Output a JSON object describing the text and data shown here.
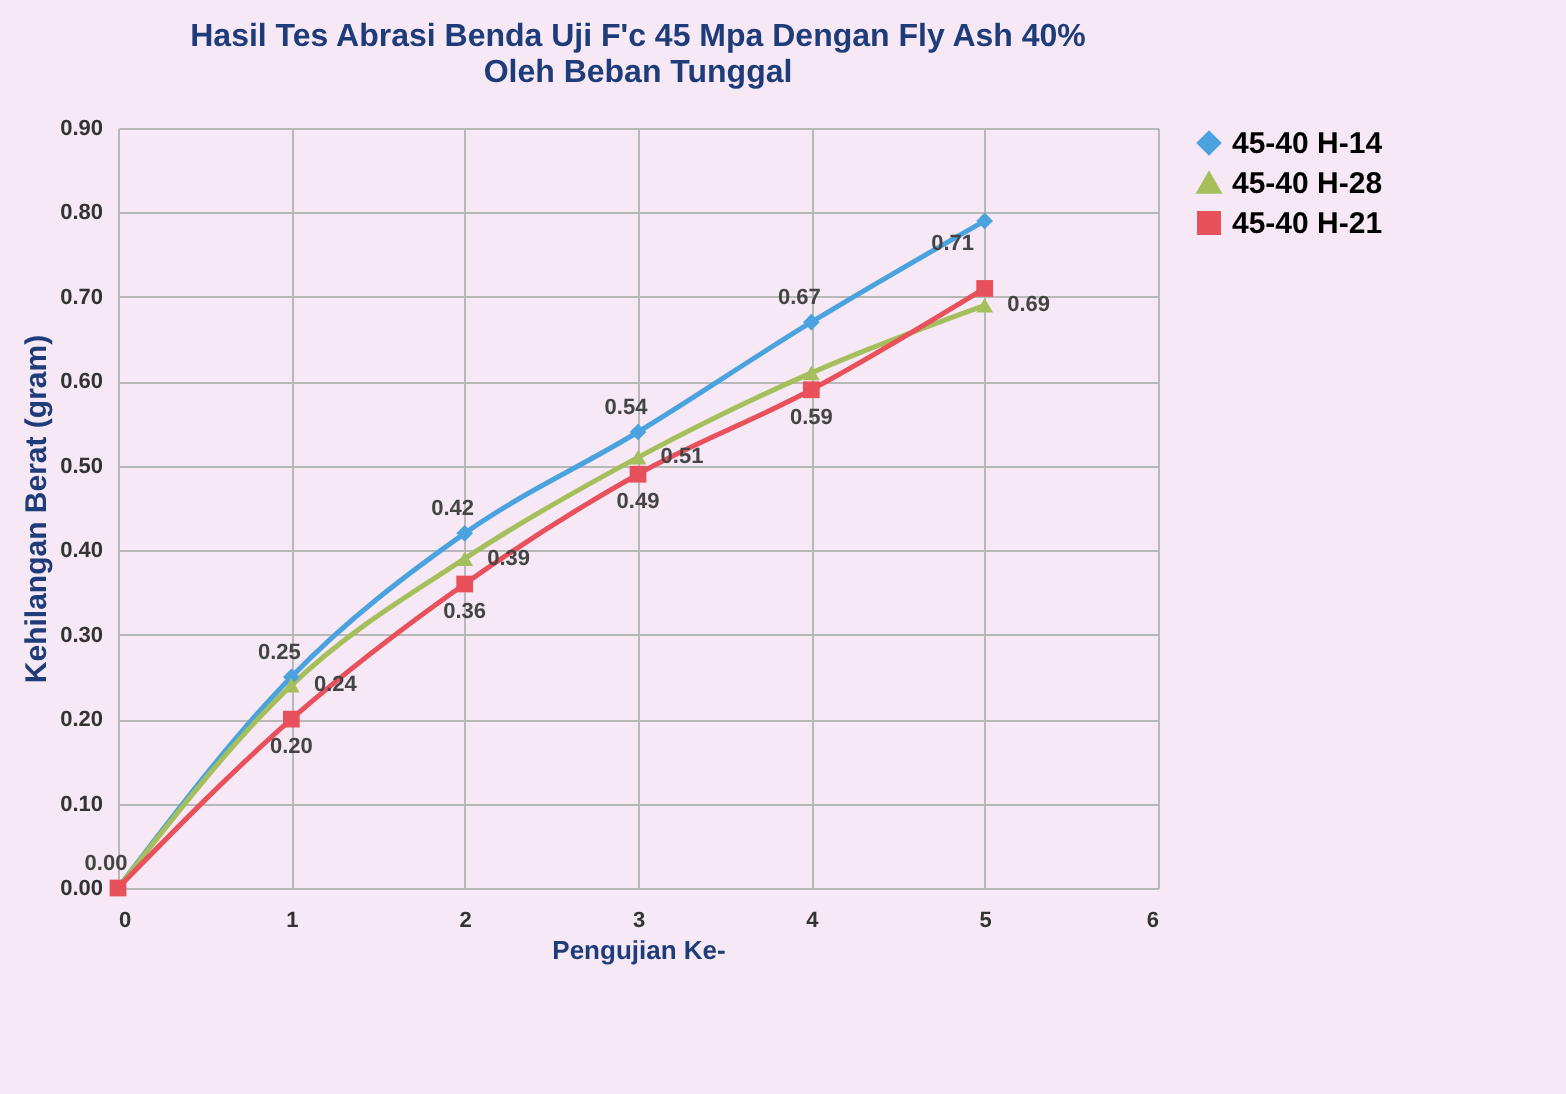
{
  "chart_data": {
    "type": "line",
    "title": "Hasil Tes Abrasi Benda Uji F'c 45 Mpa Dengan Fly Ash  40%\nOleh Beban Tunggal",
    "xlabel": "Pengujian Ke-",
    "ylabel": "Kehilangan Berat (gram)",
    "x": [
      0,
      1,
      2,
      3,
      4,
      5
    ],
    "series": [
      {
        "name": "45-40 H-14",
        "color": "#4aa3df",
        "marker": "diamond",
        "values": [
          0,
          0.25,
          0.42,
          0.54,
          0.67,
          0.79
        ],
        "value_labels": [
          "0.00",
          "0.25",
          "0.42",
          "0.54",
          "0.67",
          null
        ]
      },
      {
        "name": "45-40 H-28",
        "color": "#a5bf5c",
        "marker": "triangle",
        "values": [
          0,
          0.24,
          0.39,
          0.51,
          0.61,
          0.69
        ],
        "value_labels": [
          null,
          "0.24",
          "0.39",
          "0.51",
          null,
          "0.69"
        ]
      },
      {
        "name": "45-40 H-21",
        "color": "#e8505b",
        "marker": "square",
        "values": [
          0,
          0.2,
          0.36,
          0.49,
          0.59,
          0.71
        ],
        "value_labels": [
          null,
          "0.20",
          "0.36",
          "0.49",
          "0.59",
          "0.71"
        ]
      }
    ],
    "xlim": [
      0,
      6
    ],
    "xticks": [
      0,
      1,
      2,
      3,
      4,
      5,
      6
    ],
    "ylim": [
      0,
      0.9
    ],
    "yticks": [
      {
        "value": 0,
        "label": "0.00"
      },
      {
        "value": 0.1,
        "label": "0.10"
      },
      {
        "value": 0.2,
        "label": "0.20"
      },
      {
        "value": 0.3,
        "label": "0.30"
      },
      {
        "value": 0.4,
        "label": "0.40"
      },
      {
        "value": 0.5,
        "label": "0.50"
      },
      {
        "value": 0.6,
        "label": "0.60"
      },
      {
        "value": 0.7,
        "label": "0.70"
      },
      {
        "value": 0.8,
        "label": "0.80"
      },
      {
        "value": 0.9,
        "label": "0.90"
      }
    ],
    "grid": true,
    "legend": "right",
    "line_style": "solid"
  }
}
